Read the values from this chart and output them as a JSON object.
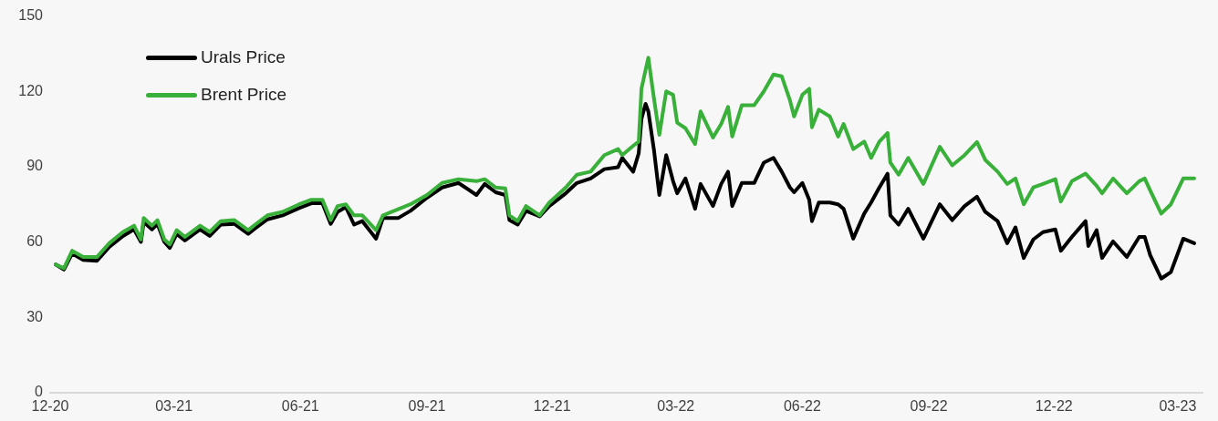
{
  "chart_data": {
    "type": "line",
    "x": [
      "2020-12-05",
      "2020-12-11",
      "2020-12-17",
      "2020-12-25",
      "2021-01-04",
      "2021-01-13",
      "2021-01-23",
      "2021-01-31",
      "2021-02-05",
      "2021-02-07",
      "2021-02-13",
      "2021-02-17",
      "2021-02-22",
      "2021-02-26",
      "2021-03-03",
      "2021-03-09",
      "2021-03-20",
      "2021-03-27",
      "2021-04-04",
      "2021-04-14",
      "2021-04-24",
      "2021-04-29",
      "2021-05-08",
      "2021-05-19",
      "2021-05-31",
      "2021-06-09",
      "2021-06-17",
      "2021-06-23",
      "2021-06-28",
      "2021-07-04",
      "2021-07-10",
      "2021-07-16",
      "2021-07-26",
      "2021-07-31",
      "2021-08-11",
      "2021-08-20",
      "2021-09-01",
      "2021-09-12",
      "2021-09-24",
      "2021-10-07",
      "2021-10-13",
      "2021-10-21",
      "2021-10-28",
      "2021-10-31",
      "2021-11-06",
      "2021-11-12",
      "2021-11-22",
      "2021-11-29",
      "2021-12-11",
      "2021-12-19",
      "2021-12-29",
      "2022-01-08",
      "2022-01-18",
      "2022-01-21",
      "2022-01-29",
      "2022-02-02",
      "2022-02-04",
      "2022-02-07",
      "2022-02-09",
      "2022-02-13",
      "2022-02-17",
      "2022-02-22",
      "2022-02-27",
      "2022-03-02",
      "2022-03-08",
      "2022-03-15",
      "2022-03-19",
      "2022-03-28",
      "2022-04-03",
      "2022-04-08",
      "2022-04-11",
      "2022-04-18",
      "2022-04-27",
      "2022-05-04",
      "2022-05-11",
      "2022-05-17",
      "2022-05-23",
      "2022-05-26",
      "2022-06-01",
      "2022-06-06",
      "2022-06-08",
      "2022-06-13",
      "2022-06-21",
      "2022-06-27",
      "2022-07-01",
      "2022-07-08",
      "2022-07-16",
      "2022-07-21",
      "2022-07-27",
      "2022-08-02",
      "2022-08-04",
      "2022-08-10",
      "2022-08-17",
      "2022-08-28",
      "2022-09-09",
      "2022-09-18",
      "2022-09-27",
      "2022-10-06",
      "2022-10-12",
      "2022-10-21",
      "2022-10-28",
      "2022-11-03",
      "2022-11-09",
      "2022-11-16",
      "2022-11-23",
      "2022-12-02",
      "2022-12-06",
      "2022-12-14",
      "2022-12-24",
      "2022-12-26",
      "2023-01-01",
      "2023-01-05",
      "2023-01-13",
      "2023-01-23",
      "2023-02-01",
      "2023-02-05",
      "2023-02-09",
      "2023-02-17",
      "2023-02-24",
      "2023-03-05",
      "2023-03-13"
    ],
    "series": [
      {
        "name": "Urals Price",
        "color": "#000000",
        "values": [
          51,
          49,
          55.4,
          52.8,
          52.5,
          58,
          62.4,
          65,
          60,
          68,
          65,
          67.2,
          60,
          57.6,
          63.2,
          60.6,
          65,
          62.4,
          66.9,
          67.2,
          63.2,
          65.4,
          69,
          70.6,
          73.5,
          75.4,
          75.4,
          67.2,
          72,
          73.9,
          66.9,
          68.3,
          61.3,
          69.5,
          69.5,
          72.4,
          77.6,
          81.7,
          83.5,
          78.7,
          83.1,
          79.8,
          78.7,
          68.7,
          66.9,
          72.4,
          70.2,
          74.3,
          79.4,
          83.5,
          85.3,
          89,
          89.8,
          93.5,
          88,
          95.3,
          109,
          115,
          112,
          97,
          78.7,
          94.6,
          84.2,
          79.4,
          85.3,
          73.2,
          83.1,
          74.3,
          83.1,
          88,
          74.3,
          83.5,
          83.5,
          91.6,
          93.5,
          88,
          81.7,
          79.8,
          83.5,
          76.8,
          68.3,
          75.7,
          75.7,
          75,
          73.2,
          61.3,
          71.3,
          75.7,
          81.7,
          87.2,
          70.6,
          66.9,
          73.2,
          61.3,
          75,
          68.7,
          74.3,
          78,
          72,
          68.3,
          59.5,
          65.8,
          53.6,
          61,
          63.9,
          65,
          56.5,
          62,
          68.3,
          58.4,
          64.7,
          53.6,
          60.2,
          54,
          62,
          62,
          54.7,
          45.4,
          48,
          61.3,
          59.5
        ]
      },
      {
        "name": "Brent Price",
        "color": "#39b039",
        "values": [
          51,
          49.5,
          56.5,
          54,
          54,
          59.5,
          64,
          66.5,
          61,
          69.5,
          66.5,
          68.7,
          61,
          59,
          64.7,
          62,
          66.5,
          64,
          68.3,
          68.7,
          64.7,
          66.9,
          70.6,
          72,
          75,
          76.8,
          76.8,
          68.7,
          74.3,
          75,
          70.6,
          70.6,
          64.7,
          70.6,
          73,
          75,
          78.7,
          83.5,
          85,
          84.2,
          85,
          81.7,
          81.3,
          70.6,
          68.3,
          74.3,
          70.6,
          75.7,
          81.7,
          86.8,
          88,
          94.6,
          97,
          94.6,
          98.3,
          100,
          121,
          128.6,
          133.4,
          117.5,
          102.7,
          120,
          118.6,
          107.5,
          105.3,
          99,
          112,
          101.6,
          107,
          113.8,
          102,
          114.5,
          114.5,
          120,
          126.7,
          126,
          116.4,
          110,
          118.6,
          121,
          105.7,
          112.7,
          110,
          102,
          107,
          97,
          100,
          93.5,
          100,
          103.4,
          91.6,
          86.8,
          93.5,
          83.1,
          97.9,
          90.5,
          94.6,
          99.8,
          92.7,
          88,
          83.1,
          85.3,
          75,
          81.7,
          83.1,
          85,
          76.1,
          84.2,
          87.2,
          86,
          82.4,
          79.4,
          85.3,
          79.4,
          84.2,
          85.3,
          80.5,
          71.3,
          75,
          85.3,
          85.3
        ]
      }
    ],
    "xlim": [
      "2020-12-01",
      "2023-03-19"
    ],
    "xticks": [
      {
        "value": "2020-12-01",
        "label": "12-20"
      },
      {
        "value": "2021-03-01",
        "label": "03-21"
      },
      {
        "value": "2021-06-01",
        "label": "06-21"
      },
      {
        "value": "2021-09-01",
        "label": "09-21"
      },
      {
        "value": "2021-12-01",
        "label": "12-21"
      },
      {
        "value": "2022-03-01",
        "label": "03-22"
      },
      {
        "value": "2022-06-01",
        "label": "06-22"
      },
      {
        "value": "2022-09-01",
        "label": "09-22"
      },
      {
        "value": "2022-12-01",
        "label": "12-22"
      },
      {
        "value": "2023-03-01",
        "label": "03-23"
      }
    ],
    "ylim": [
      0,
      150
    ],
    "yticks": [
      0,
      30,
      60,
      90,
      120,
      150
    ],
    "grid": false,
    "legend": "top left",
    "marker": "none",
    "line_style": "solid"
  }
}
